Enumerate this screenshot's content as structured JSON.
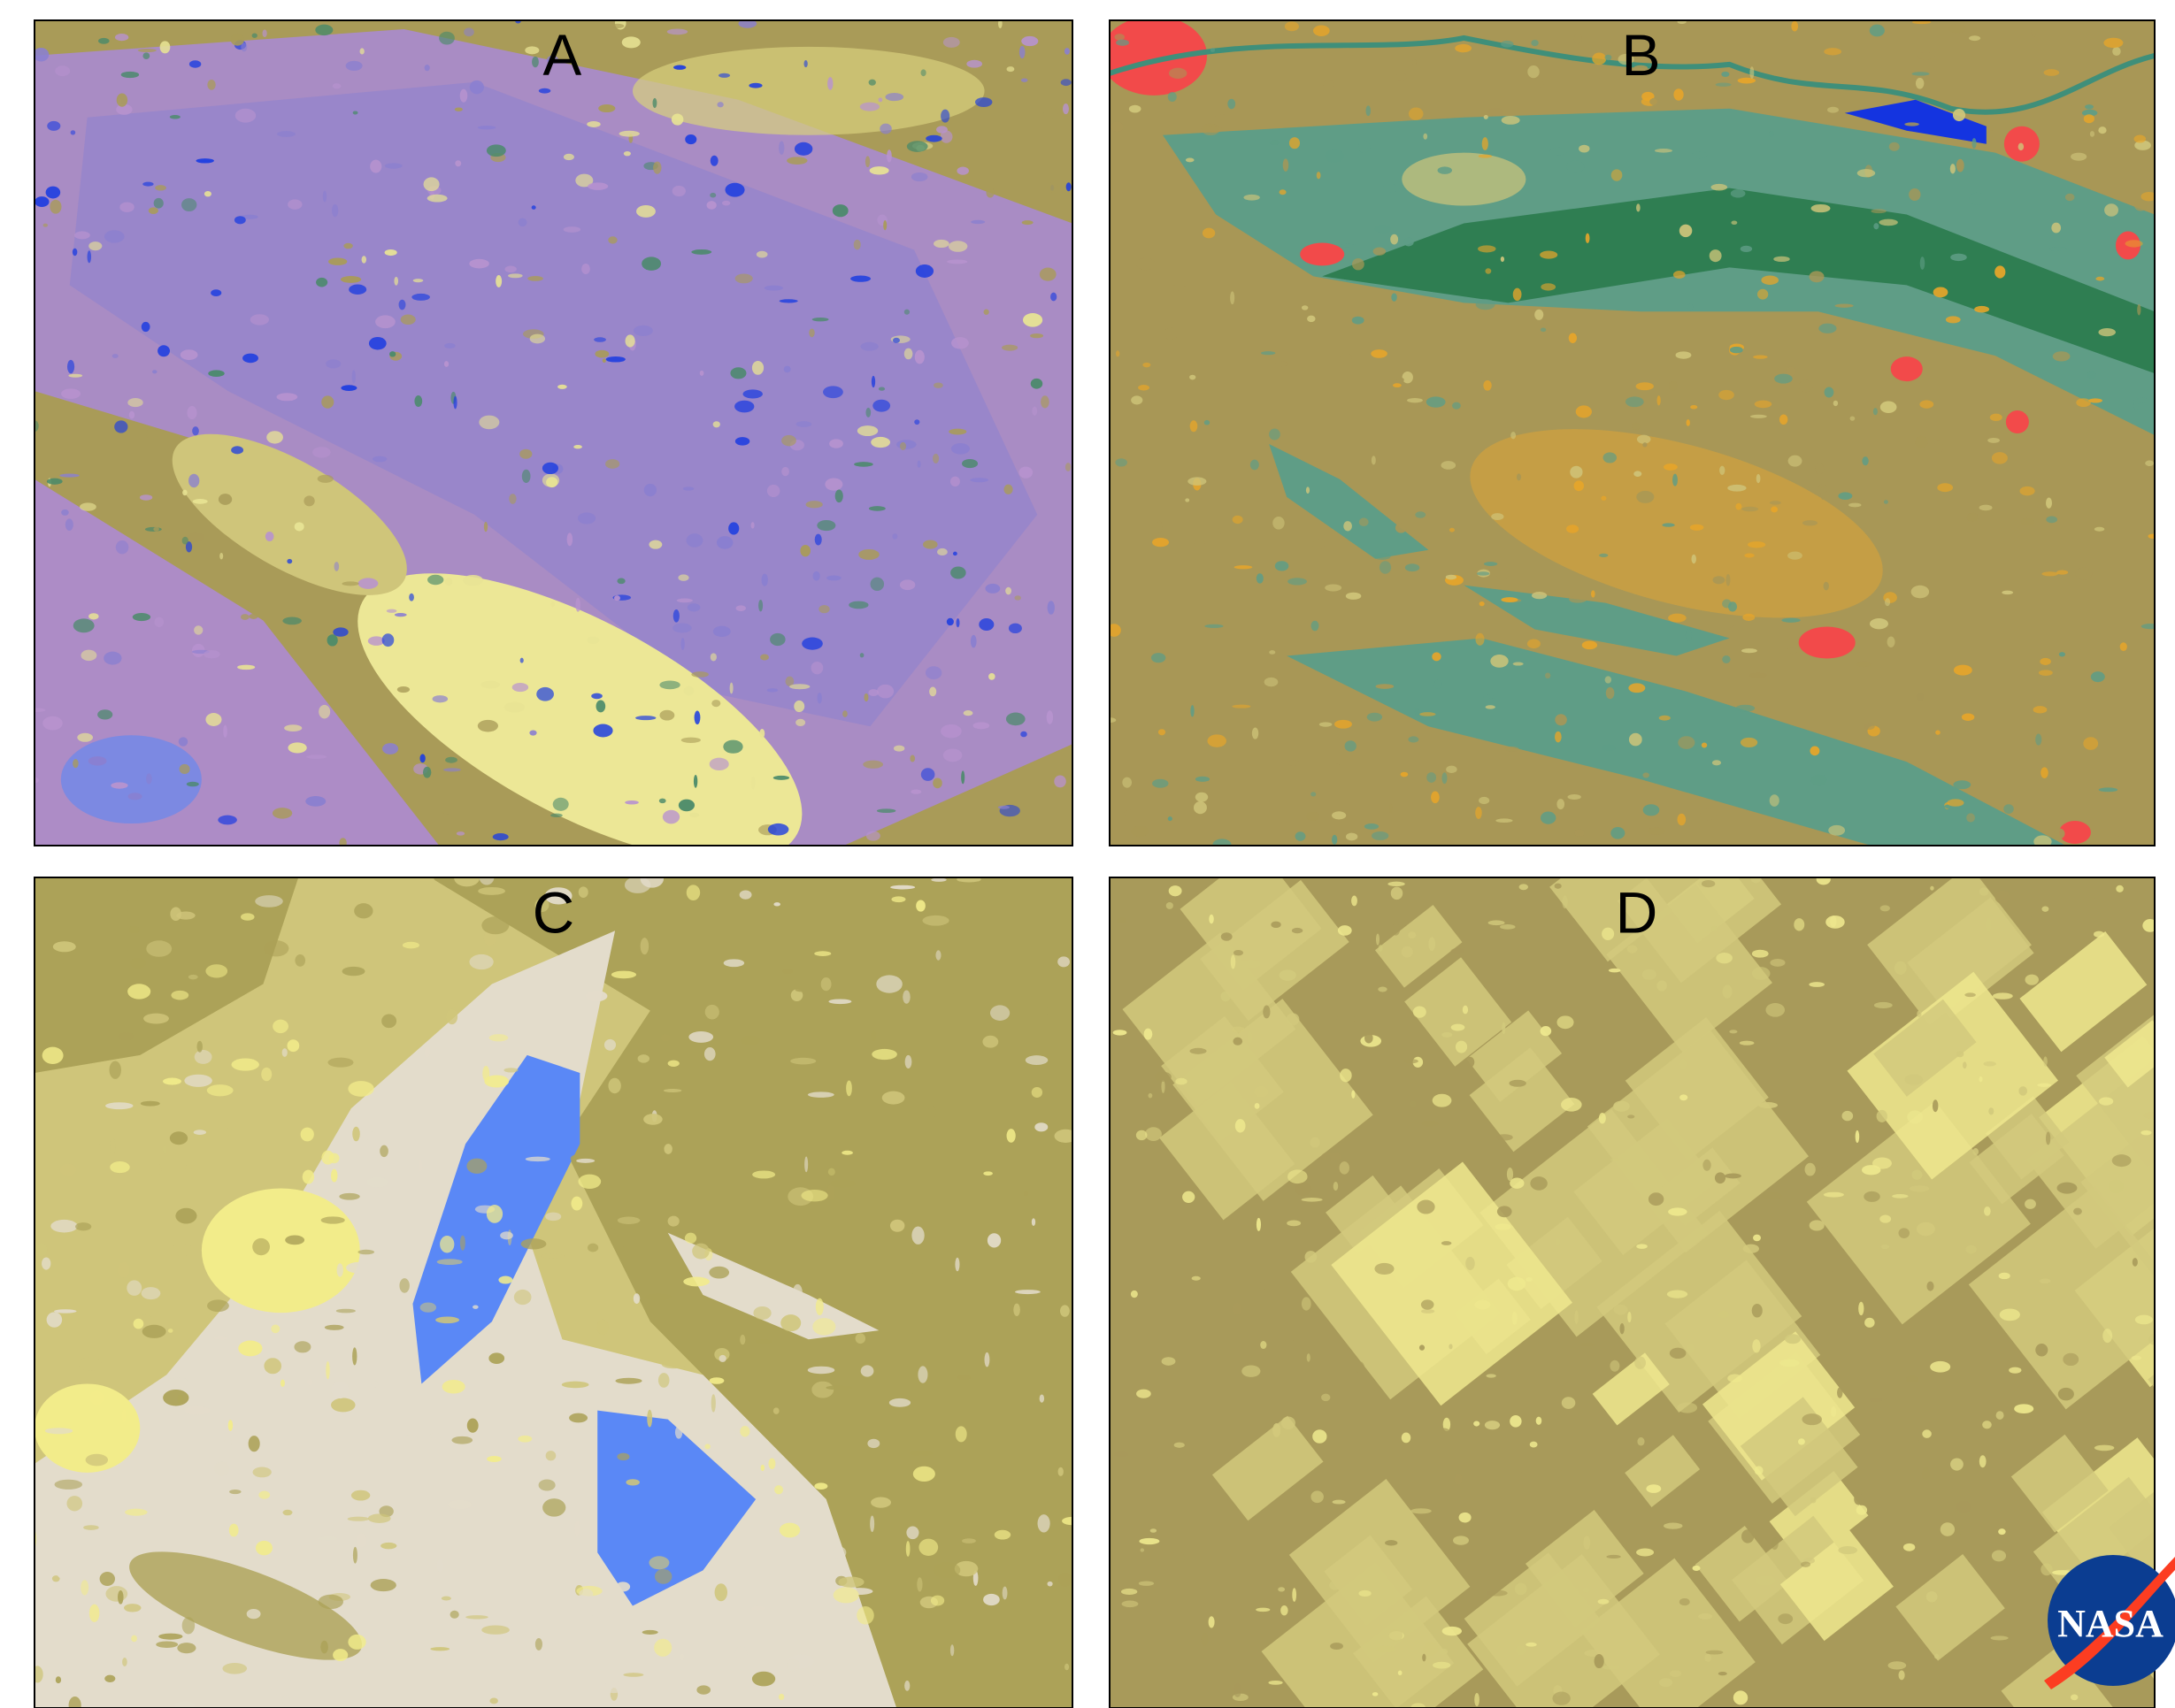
{
  "panels": [
    {
      "label": "A"
    },
    {
      "label": "B"
    },
    {
      "label": "C"
    },
    {
      "label": "D"
    }
  ],
  "logo": {
    "text": "NASA"
  }
}
